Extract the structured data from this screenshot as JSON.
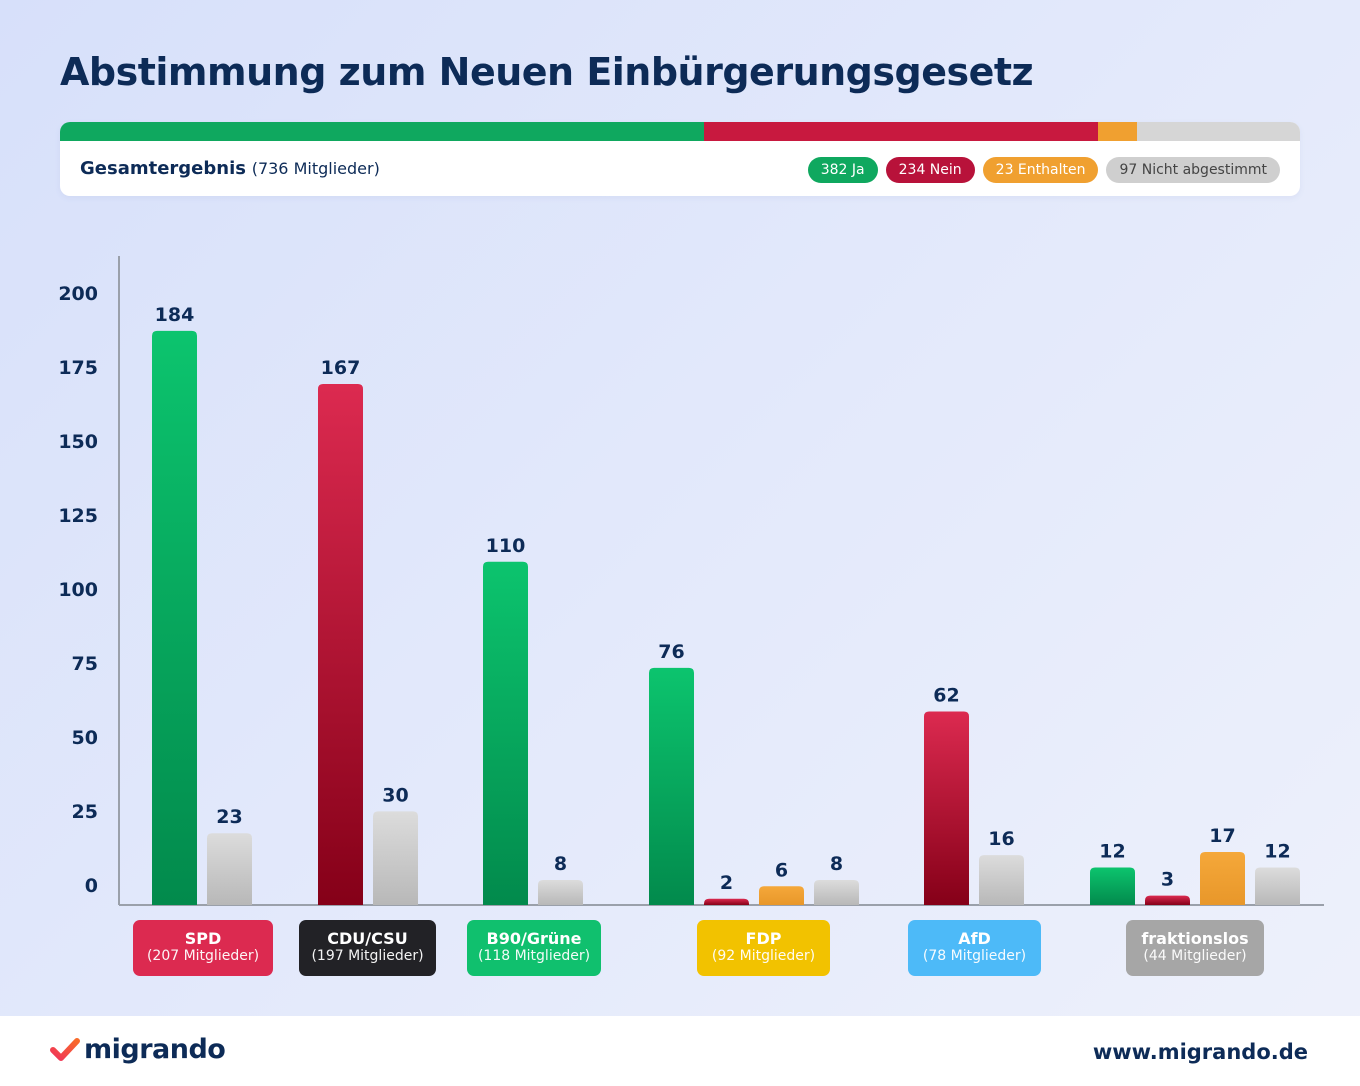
{
  "title": "Abstimmung zum Neuen Einbürgerungsgesetz",
  "summary": {
    "label": "Gesamtergebnis",
    "members": "(736 Mitglieder)",
    "segments": [
      {
        "name": "Ja",
        "value": 382,
        "color": "#0fa85f"
      },
      {
        "name": "Nein",
        "value": 234,
        "color": "#c8193f"
      },
      {
        "name": "Enthalten",
        "value": 23,
        "color": "#f0a030"
      },
      {
        "name": "Nicht abgestimmt",
        "value": 97,
        "color": "#d6d6d6"
      }
    ],
    "pills": [
      {
        "label": "382 Ja",
        "color": "#0fa85f",
        "text_color": "#ffffff"
      },
      {
        "label": "234 Nein",
        "color": "#b8123a",
        "text_color": "#ffffff"
      },
      {
        "label": "23 Enthalten",
        "color": "#f0a030",
        "text_color": "#ffffff"
      },
      {
        "label": "97 Nicht abgestimmt",
        "color": "#cfcfcf",
        "text_color": "#444444"
      }
    ]
  },
  "colors": {
    "Ja": [
      "#0cc46e",
      "#028a4c"
    ],
    "Nein": [
      "#dc2a50",
      "#850018"
    ],
    "Enthalten": [
      "#f5a83a",
      "#e8972a"
    ],
    "Nicht abgestimmt": [
      "#dcdcdc",
      "#b8b8b8"
    ]
  },
  "chart_data": {
    "type": "bar",
    "title": "Abstimmung zum Neuen Einbürgerungsgesetz",
    "xlabel": "",
    "ylabel": "",
    "ylim": [
      0,
      200
    ],
    "yticks": [
      0,
      25,
      50,
      75,
      100,
      125,
      150,
      175,
      200
    ],
    "grid": false,
    "categories": [
      {
        "party": "SPD",
        "members": "(207 Mitglieder)",
        "color": "#dc2a50",
        "bars": [
          {
            "type": "Ja",
            "value": 184
          },
          {
            "type": "Nicht abgestimmt",
            "value": 23
          }
        ]
      },
      {
        "party": "CDU/CSU",
        "members": "(197 Mitglieder)",
        "color": "#222226",
        "bars": [
          {
            "type": "Nein",
            "value": 167
          },
          {
            "type": "Nicht abgestimmt",
            "value": 30
          }
        ]
      },
      {
        "party": "B90/Grüne",
        "members": "(118 Mitglieder)",
        "color": "#10c06e",
        "bars": [
          {
            "type": "Ja",
            "value": 110
          },
          {
            "type": "Nicht abgestimmt",
            "value": 8
          }
        ]
      },
      {
        "party": "FDP",
        "members": "(92 Mitglieder)",
        "color": "#f2c200",
        "bars": [
          {
            "type": "Ja",
            "value": 76
          },
          {
            "type": "Nein",
            "value": 2
          },
          {
            "type": "Enthalten",
            "value": 6
          },
          {
            "type": "Nicht abgestimmt",
            "value": 8
          }
        ]
      },
      {
        "party": "AfD",
        "members": "(78 Mitglieder)",
        "color": "#4dbaf8",
        "bars": [
          {
            "type": "Nein",
            "value": 62
          },
          {
            "type": "Nicht abgestimmt",
            "value": 16
          }
        ]
      },
      {
        "party": "fraktionslos",
        "members": "(44 Mitglieder)",
        "color": "#a6a6a6",
        "bars": [
          {
            "type": "Ja",
            "value": 12
          },
          {
            "type": "Nein",
            "value": 3
          },
          {
            "type": "Enthalten",
            "value": 17
          },
          {
            "type": "Nicht abgestimmt",
            "value": 12
          }
        ]
      }
    ]
  },
  "footer": {
    "logo": "migrando",
    "url": "www.migrando.de"
  }
}
